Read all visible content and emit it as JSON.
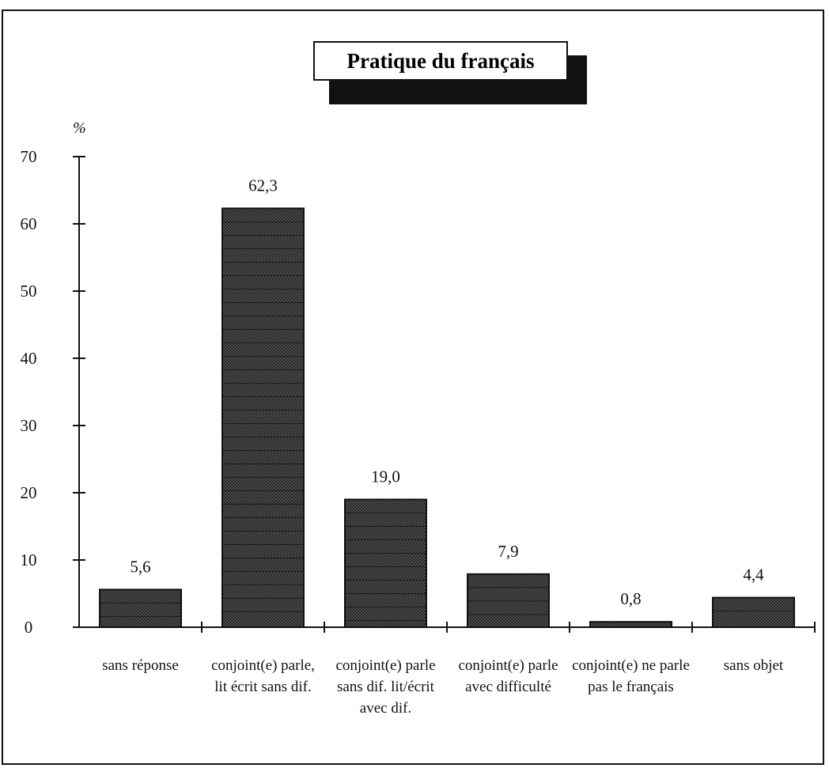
{
  "chart_data": {
    "type": "bar",
    "title": "Pratique du français",
    "ylabel": "%",
    "xlabel": "",
    "ylim": [
      0,
      70
    ],
    "yticks": [
      0,
      10,
      20,
      30,
      40,
      50,
      60,
      70
    ],
    "categories": [
      "sans réponse",
      "conjoint(e) parle, lit écrit sans dif.",
      "conjoint(e) parle sans dif. lit/écrit avec dif.",
      "conjoint(e) parle avec difficulté",
      "conjoint(e) ne parle pas le français",
      "sans objet"
    ],
    "values": [
      5.6,
      62.3,
      19.0,
      7.9,
      0.8,
      4.4
    ],
    "data_labels": [
      "5,6",
      "62,3",
      "19,0",
      "7,9",
      "0,8",
      "4,4"
    ],
    "grid": false,
    "legend": "none",
    "colors": {
      "bar": "#3a3a3a",
      "hatch": "#111111",
      "axis": "#111111"
    }
  }
}
